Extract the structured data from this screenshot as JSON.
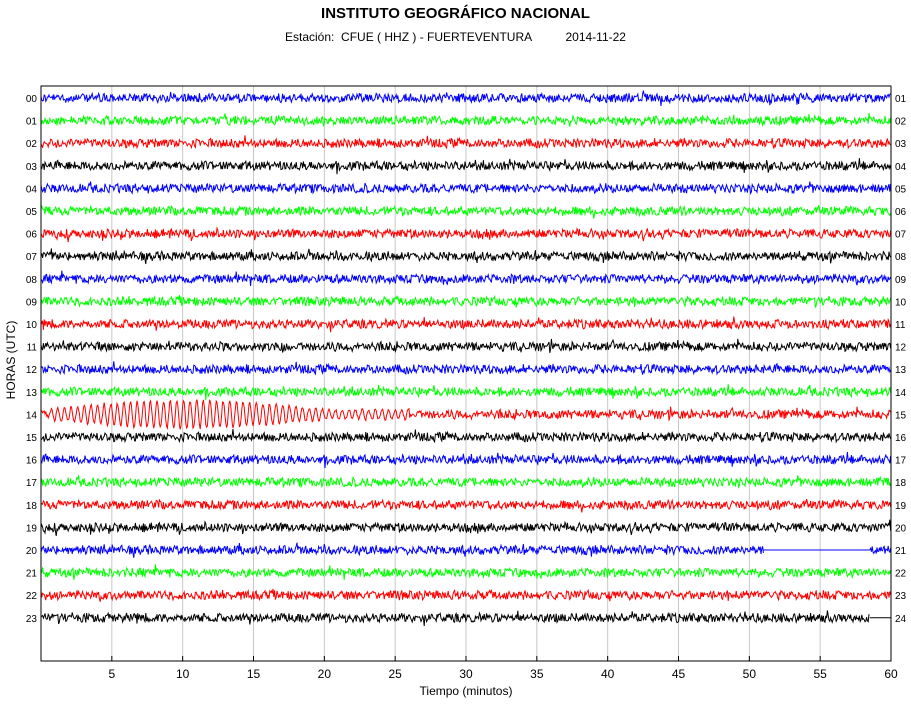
{
  "chart_data": {
    "type": "line",
    "title": "INSTITUTO GEOGRÁFICO NACIONAL",
    "subtitle": {
      "station_label": "Estación:",
      "station": "CFUE ( HHZ ) - FUERTEVENTURA",
      "date": "2014-11-22"
    },
    "xlabel": "Tiempo (minutos)",
    "ylabel": "HORAS (UTC)",
    "xlim": [
      0,
      60
    ],
    "x_ticks": [
      5,
      10,
      15,
      20,
      25,
      30,
      35,
      40,
      45,
      50,
      55,
      60
    ],
    "grid": true,
    "left_hours": [
      "00",
      "01",
      "02",
      "03",
      "04",
      "05",
      "06",
      "07",
      "08",
      "09",
      "10",
      "11",
      "12",
      "13",
      "14",
      "15",
      "16",
      "17",
      "18",
      "19",
      "20",
      "21",
      "22",
      "23"
    ],
    "right_hours": [
      "01",
      "02",
      "03",
      "04",
      "05",
      "06",
      "07",
      "08",
      "09",
      "10",
      "11",
      "12",
      "13",
      "14",
      "15",
      "16",
      "17",
      "18",
      "19",
      "20",
      "21",
      "22",
      "23",
      "24"
    ],
    "trace_colors": [
      "#0000ff",
      "#00ff00",
      "#ff0000",
      "#000000"
    ],
    "events": [
      {
        "hour": "14",
        "start_min": 0.5,
        "end_min": 26,
        "description": "high-amplitude oscillations"
      }
    ],
    "data_gaps": [
      {
        "hour": "20",
        "start_min": 51,
        "end_min": 58.5
      },
      {
        "hour": "23",
        "start_min": 58.5,
        "end_min": 60
      }
    ]
  }
}
